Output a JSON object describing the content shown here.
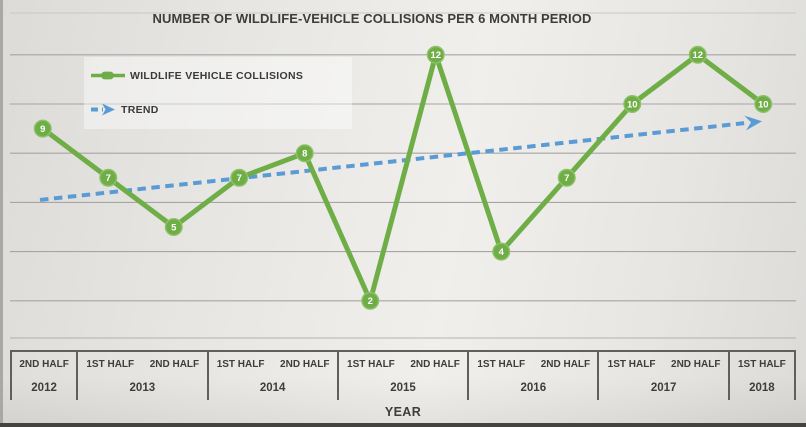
{
  "title": "NUMBER OF WILDLIFE-VEHICLE COLLISIONS PER 6 MONTH PERIOD",
  "legend": {
    "position": "top-left",
    "items": [
      {
        "label": "WILDLIFE VEHICLE COLLISIONS",
        "swatch": "green-line-with-marker"
      },
      {
        "label": "TREND",
        "swatch": "blue-dashed-arrow"
      }
    ]
  },
  "chart_data": {
    "type": "line",
    "title": "NUMBER OF WILDLIFE-VEHICLE COLLISIONS PER 6 MONTH PERIOD",
    "xlabel": "YEAR",
    "ylabel": "",
    "ylim": [
      0,
      13
    ],
    "grid": true,
    "gridline_values": [
      2,
      4,
      6,
      8,
      10,
      12
    ],
    "data_labels": true,
    "legend_position": "top-left",
    "x_categories": [
      {
        "year": "2012",
        "halves": [
          "2ND HALF"
        ]
      },
      {
        "year": "2013",
        "halves": [
          "1ST HALF",
          "2ND HALF"
        ]
      },
      {
        "year": "2014",
        "halves": [
          "1ST HALF",
          "2ND HALF"
        ]
      },
      {
        "year": "2015",
        "halves": [
          "1ST HALF",
          "2ND HALF"
        ]
      },
      {
        "year": "2016",
        "halves": [
          "1ST HALF",
          "2ND HALF"
        ]
      },
      {
        "year": "2017",
        "halves": [
          "1ST HALF",
          "2ND HALF"
        ]
      },
      {
        "year": "2018",
        "halves": [
          "1ST HALF"
        ]
      }
    ],
    "series": [
      {
        "name": "WILDLIFE VEHICLE COLLISIONS",
        "type": "line",
        "values": [
          9,
          7,
          5,
          7,
          8,
          2,
          12,
          4,
          7,
          10,
          12,
          10
        ],
        "color": "#6fae47",
        "label_color": "#ffffff"
      },
      {
        "name": "TREND",
        "type": "trend",
        "style": "dashed-arrow",
        "color": "#5b9bd5",
        "start_value": 6.1,
        "end_value": 9.3
      }
    ]
  },
  "colors": {
    "series_green": "#6fae47",
    "marker_ring": "#8ec168",
    "trend_blue": "#5b9bd5",
    "text": "#3d3d3c",
    "gridline": "#a6a5a3",
    "axis_border": "#5f5f5d",
    "plot_border_faint": "#c9c8c5",
    "bottom_bar": "#44433f"
  }
}
